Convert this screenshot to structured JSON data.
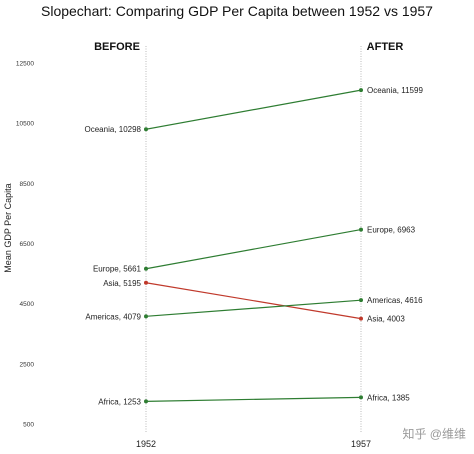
{
  "chart_data": {
    "type": "line",
    "title": "Slopechart: Comparing GDP Per Capita between 1952 vs 1957",
    "ylabel": "Mean GDP Per Capita",
    "xlabel": "",
    "headers": {
      "left": "BEFORE",
      "right": "AFTER"
    },
    "x": [
      "1952",
      "1957"
    ],
    "ylim": [
      500,
      13000
    ],
    "yticks": [
      "500",
      "2500",
      "4500",
      "6500",
      "8500",
      "10500",
      "12500"
    ],
    "grid": false,
    "series": [
      {
        "name": "Oceania",
        "values": [
          10298,
          11599
        ],
        "color": "#2e7d32",
        "labels": [
          "Oceania, 10298",
          "Oceania, 11599"
        ]
      },
      {
        "name": "Europe",
        "values": [
          5661,
          6963
        ],
        "color": "#2e7d32",
        "labels": [
          "Europe, 5661",
          "Europe, 6963"
        ]
      },
      {
        "name": "Asia",
        "values": [
          5195,
          4003
        ],
        "color": "#c0392b",
        "labels": [
          "Asia, 5195",
          "Asia, 4003"
        ]
      },
      {
        "name": "Americas",
        "values": [
          4079,
          4616
        ],
        "color": "#2e7d32",
        "labels": [
          "Americas, 4079",
          "Americas, 4616"
        ]
      },
      {
        "name": "Africa",
        "values": [
          1253,
          1385
        ],
        "color": "#2e7d32",
        "labels": [
          "Africa, 1253",
          "Africa, 1385"
        ]
      }
    ]
  },
  "watermark": "知乎 @维维"
}
